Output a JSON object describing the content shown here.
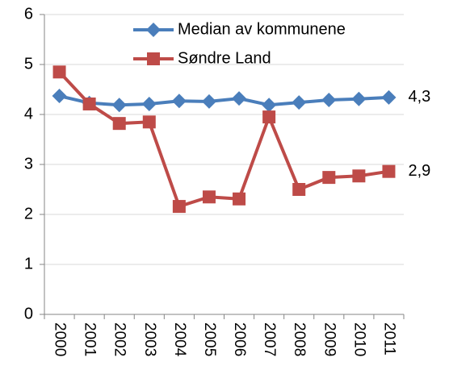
{
  "chart_data": {
    "type": "line",
    "categories": [
      "2000",
      "2001",
      "2002",
      "2003",
      "2004",
      "2005",
      "2006",
      "2007",
      "2008",
      "2009",
      "2010",
      "2011"
    ],
    "series": [
      {
        "name": "Median av kommunene",
        "color": "#4a7ebb",
        "marker": "diamond",
        "values": [
          4.37,
          4.23,
          4.19,
          4.21,
          4.27,
          4.26,
          4.32,
          4.19,
          4.24,
          4.29,
          4.31,
          4.34
        ],
        "value_labels": [
          null,
          null,
          null,
          null,
          null,
          null,
          null,
          null,
          null,
          null,
          null,
          "4,3"
        ]
      },
      {
        "name": "Søndre Land",
        "color": "#be4b48",
        "marker": "square",
        "values": [
          4.85,
          4.21,
          3.82,
          3.85,
          2.16,
          2.35,
          2.31,
          3.95,
          2.5,
          2.74,
          2.77,
          2.86
        ],
        "value_labels": [
          null,
          null,
          null,
          null,
          null,
          null,
          null,
          null,
          null,
          null,
          null,
          "2,9"
        ]
      }
    ],
    "ylim": [
      0,
      6
    ],
    "yticks": [
      0,
      1,
      2,
      3,
      4,
      5,
      6
    ],
    "grid": true,
    "legend": "top-right"
  }
}
